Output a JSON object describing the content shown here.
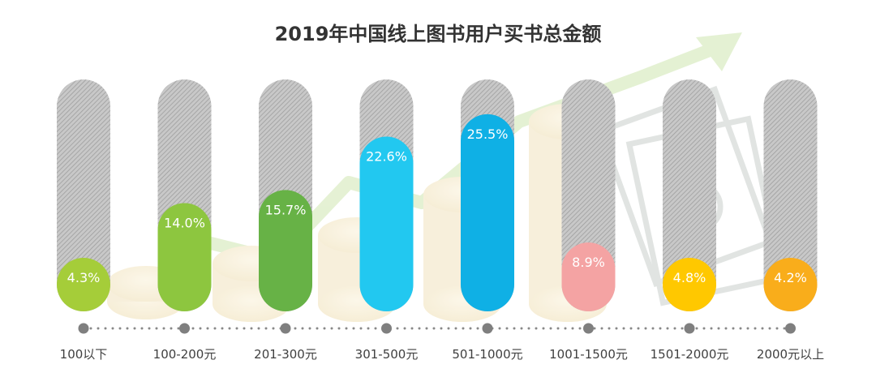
{
  "chart_data": {
    "type": "bar",
    "title": "2019年中国线上图书用户买书总金额",
    "categories": [
      "100以下",
      "100-200元",
      "201-300元",
      "301-500元",
      "501-1000元",
      "1001-1500元",
      "1501-2000元",
      "2000元以上"
    ],
    "values": [
      4.3,
      14.0,
      15.7,
      22.6,
      25.5,
      8.9,
      4.8,
      4.2
    ],
    "value_labels": [
      "4.3%",
      "14.0%",
      "15.7%",
      "22.6%",
      "25.5%",
      "8.9%",
      "4.8%",
      "4.2%"
    ],
    "unit": "%",
    "ylim": [
      0,
      30
    ],
    "legend": "none",
    "grid": false,
    "colors": [
      "#a5cd39",
      "#8dc63f",
      "#67b246",
      "#22c8f0",
      "#0fb0e5",
      "#f4a3a3",
      "#ffc800",
      "#f9ad1b"
    ]
  }
}
